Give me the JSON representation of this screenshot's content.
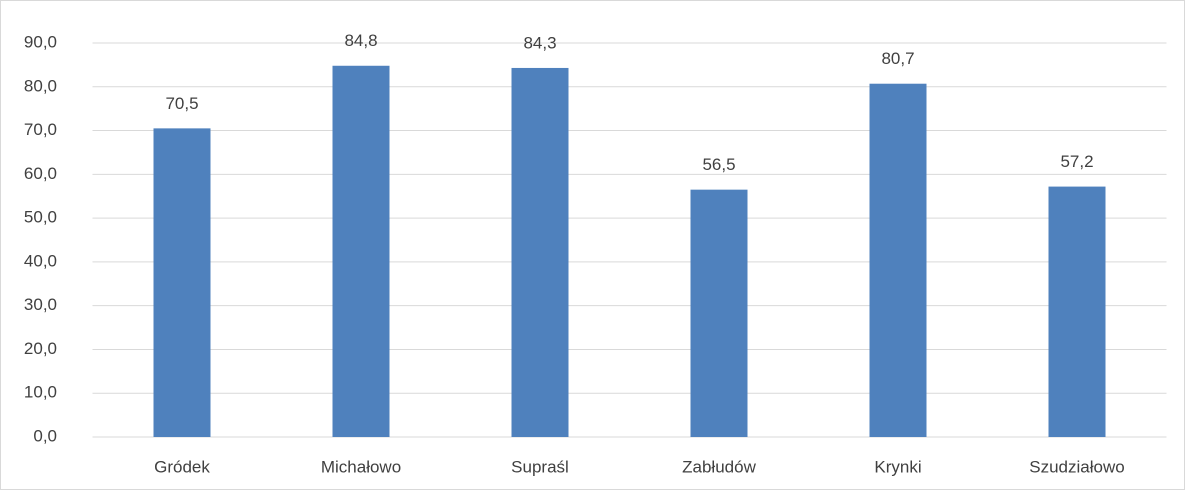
{
  "chart_data": {
    "type": "bar",
    "categories": [
      "Gródek",
      "Michałowo",
      "Supraśl",
      "Zabłudów",
      "Krynki",
      "Szudziałowo"
    ],
    "values": [
      70.5,
      84.8,
      84.3,
      56.5,
      80.7,
      57.2
    ],
    "value_labels": [
      "70,5",
      "84,8",
      "84,3",
      "56,5",
      "80,7",
      "57,2"
    ],
    "color": "#4f81bd",
    "ylim": [
      0,
      90
    ],
    "yticks": [
      {
        "value": 0,
        "label": "0,0"
      },
      {
        "value": 10,
        "label": "10,0"
      },
      {
        "value": 20,
        "label": "20,0"
      },
      {
        "value": 30,
        "label": "30,0"
      },
      {
        "value": 40,
        "label": "40,0"
      },
      {
        "value": 50,
        "label": "50,0"
      },
      {
        "value": 60,
        "label": "60,0"
      },
      {
        "value": 70,
        "label": "70,0"
      },
      {
        "value": 80,
        "label": "80,0"
      },
      {
        "value": 90,
        "label": "90,0"
      }
    ],
    "grid": true
  }
}
